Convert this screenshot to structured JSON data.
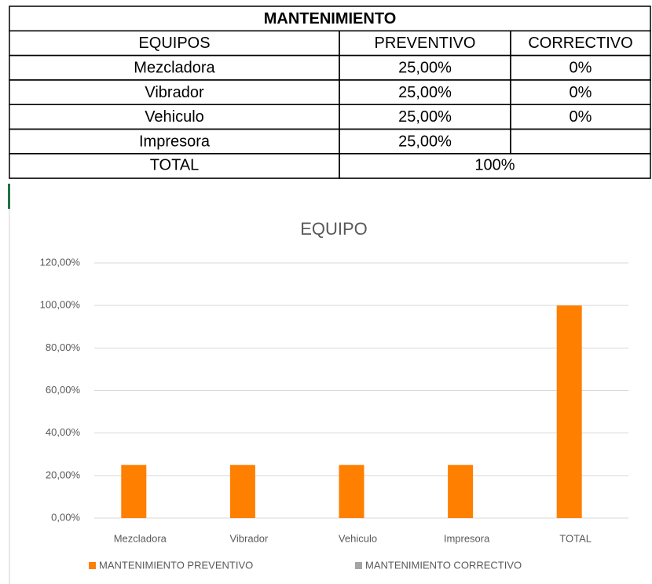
{
  "table": {
    "title": "MANTENIMIENTO",
    "header": [
      "EQUIPOS",
      "PREVENTIVO",
      "CORRECTIVO"
    ],
    "rows": [
      [
        "Mezcladora",
        "25,00%",
        "0%"
      ],
      [
        "Vibrador",
        "25,00%",
        "0%"
      ],
      [
        "Vehiculo",
        "25,00%",
        "0%"
      ],
      [
        "Impresora",
        "25,00%"
      ]
    ],
    "total": [
      "TOTAL",
      "100%"
    ]
  },
  "chart_data": {
    "type": "bar",
    "title": "EQUIPO",
    "categories": [
      "Mezcladora",
      "Vibrador",
      "Vehiculo",
      "Impresora",
      "TOTAL"
    ],
    "series": [
      {
        "name": "MANTENIMIENTO PREVENTIVO",
        "color": "#ff7f00",
        "values": [
          25,
          25,
          25,
          25,
          100
        ]
      },
      {
        "name": "MANTENIMIENTO CORRECTIVO",
        "color": "#a5a5a5",
        "values": [
          0,
          0,
          0,
          null,
          null
        ]
      }
    ],
    "ylim": [
      0,
      120
    ],
    "yticks": [
      {
        "value": 0,
        "label": "0,00%"
      },
      {
        "value": 20,
        "label": "20,00%"
      },
      {
        "value": 40,
        "label": "40,00%"
      },
      {
        "value": 60,
        "label": "60,00%"
      },
      {
        "value": 80,
        "label": "80,00%"
      },
      {
        "value": 100,
        "label": "100,00%"
      },
      {
        "value": 120,
        "label": "120,00%"
      }
    ],
    "grid": true,
    "legend": "bottom"
  }
}
